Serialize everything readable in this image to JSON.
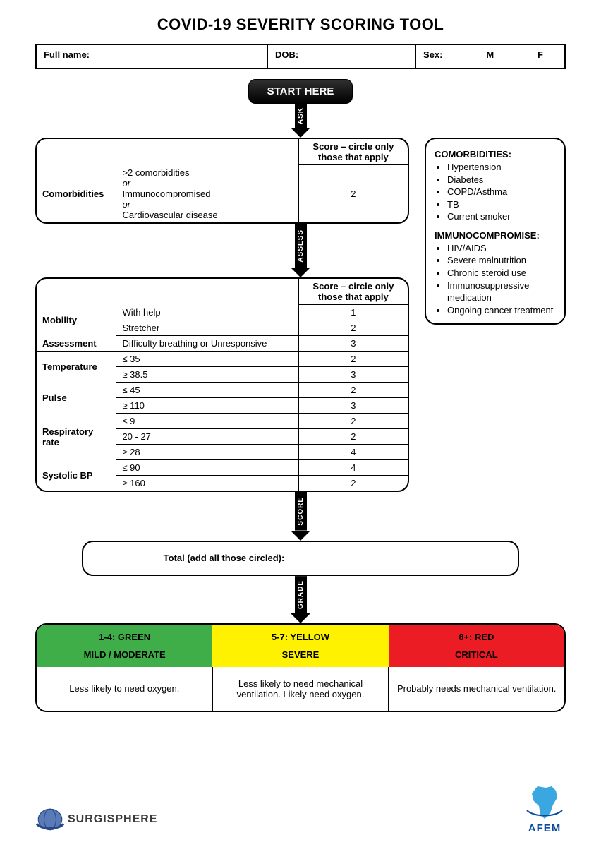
{
  "title": "COVID-19 SEVERITY SCORING TOOL",
  "patient": {
    "full_name_label": "Full name:",
    "dob_label": "DOB:",
    "sex_label": "Sex:",
    "sex_m": "M",
    "sex_f": "F"
  },
  "start_label": "START HERE",
  "arrows": {
    "ask": "ASK",
    "assess": "ASSESS",
    "score": "SCORE",
    "grade": "GRADE"
  },
  "score_header": "Score – circle only those that apply",
  "comorbidities": {
    "label": "Comorbidities",
    "criteria_lines": [
      ">2 comorbidities",
      "or",
      "Immunocompromised",
      "or",
      "Cardiovascular disease"
    ],
    "score": "2"
  },
  "sidebar": {
    "h1": "COMORBIDITIES:",
    "list1": [
      "Hypertension",
      "Diabetes",
      "COPD/Asthma",
      "TB",
      "Current smoker"
    ],
    "h2": "IMMUNOCOMPROMISE:",
    "list2": [
      "HIV/AIDS",
      "Severe malnutrition",
      "Chronic steroid use",
      "Immunosuppressive medication",
      "Ongoing cancer treatment"
    ]
  },
  "assess_rows": [
    {
      "label": "Mobility",
      "items": [
        {
          "c": "With help",
          "s": "1"
        },
        {
          "c": "Stretcher",
          "s": "2"
        }
      ]
    },
    {
      "label": "Assessment",
      "items": [
        {
          "c": "Difficulty breathing or Unresponsive",
          "s": "3"
        }
      ]
    },
    {
      "label": "Temperature",
      "items": [
        {
          "c": "≤ 35",
          "s": "2"
        },
        {
          "c": "≥ 38.5",
          "s": "3"
        }
      ]
    },
    {
      "label": "Pulse",
      "items": [
        {
          "c": "≤ 45",
          "s": "2"
        },
        {
          "c": "≥ 110",
          "s": "3"
        }
      ]
    },
    {
      "label": "Respiratory rate",
      "items": [
        {
          "c": "≤ 9",
          "s": "2"
        },
        {
          "c": "20 - 27",
          "s": "2"
        },
        {
          "c": "≥ 28",
          "s": "4"
        }
      ]
    },
    {
      "label": "Systolic BP",
      "items": [
        {
          "c": "≤ 90",
          "s": "4"
        },
        {
          "c": "≥ 160",
          "s": "2"
        }
      ]
    }
  ],
  "total_label": "Total (add all those circled):",
  "grades": [
    {
      "range": "1-4:  GREEN",
      "sev": "MILD / MODERATE",
      "desc": "Less likely to need oxygen.",
      "bg": "#3fae49",
      "fg": "#000000"
    },
    {
      "range": "5-7:  YELLOW",
      "sev": "SEVERE",
      "desc": "Less likely to need mechanical ventilation. Likely need oxygen.",
      "bg": "#fff200",
      "fg": "#000000"
    },
    {
      "range": "8+:  RED",
      "sev": "CRITICAL",
      "desc": "Probably needs mechanical ventilation.",
      "bg": "#ec1c24",
      "fg": "#000000"
    }
  ],
  "logos": {
    "surgisphere": "SURGISPHERE",
    "afem": "AFEM"
  },
  "colors": {
    "globe_fill": "#4a6aa8",
    "globe_ring": "#264a86",
    "afem_map": "#3aa7e0",
    "afem_text": "#0a4aa0"
  }
}
